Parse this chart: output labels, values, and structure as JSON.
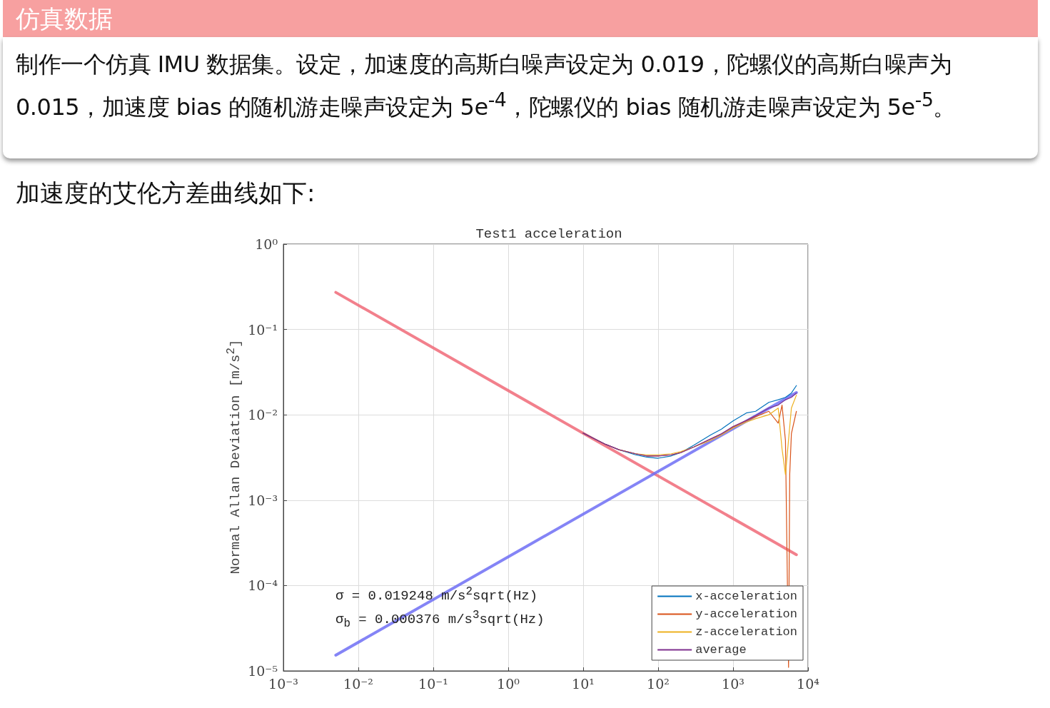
{
  "chart_data": {
    "type": "line",
    "title": "Test1 acceleration",
    "ylabel": "Normal Allan Deviation [m/s$^{2}$]",
    "annotations": [
      "仿真数据",
      "制作一个仿真 IMU 数据集。设定，加速度的高斯白噪声设定为 0.019，陀螺仪的高斯白噪声为 0.015，加速度 bias 的随机游走噪声设定为 5e$^{-4}$，陀螺仪的 bias 随机游走噪声设定为 5e$^{-5}$。",
      "加速度的艾伦方差曲线如下:",
      "σ = 0.019248 m/s$^{2}$sqrt(Hz)",
      "σ$_{b}$ = 0.000376 m/s$^{3}$sqrt(Hz)"
    ],
    "log": "xy",
    "grid": true,
    "legend": "bottom right",
    "marker": "none",
    "line_style": "solid",
    "xlim": [
      0.001,
      10000
    ],
    "ylim": [
      1e-05,
      1
    ],
    "xticks": [
      {
        "value": 0.001,
        "label": "10⁻³"
      },
      {
        "value": 0.01,
        "label": "10⁻²"
      },
      {
        "value": 0.1,
        "label": "10⁻¹"
      },
      {
        "value": 1,
        "label": "10⁰"
      },
      {
        "value": 10,
        "label": "10¹"
      },
      {
        "value": 100,
        "label": "10²"
      },
      {
        "value": 1000,
        "label": "10³"
      },
      {
        "value": 10000,
        "label": "10⁴"
      }
    ],
    "yticks": [
      {
        "value": 1e-05,
        "label": "10⁻⁵"
      },
      {
        "value": 0.0001,
        "label": "10⁻⁴"
      },
      {
        "value": 0.001,
        "label": "10⁻³"
      },
      {
        "value": 0.01,
        "label": "10⁻²"
      },
      {
        "value": 0.1,
        "label": "10⁻¹"
      },
      {
        "value": 1,
        "label": "10⁰"
      }
    ],
    "series": [
      {
        "name": "x-acceleration",
        "color": "#0072bd",
        "x": [
          10,
          20,
          30,
          50,
          70,
          100,
          150,
          200,
          300,
          500,
          700,
          1000,
          1500,
          2000,
          3000,
          4000,
          5000,
          6000,
          7000
        ],
        "values": [
          0.0061,
          0.0045,
          0.0039,
          0.0034,
          0.0032,
          0.0031,
          0.0033,
          0.0036,
          0.0044,
          0.0058,
          0.0068,
          0.0085,
          0.0105,
          0.011,
          0.014,
          0.015,
          0.016,
          0.018,
          0.022
        ]
      },
      {
        "name": "y-acceleration",
        "color": "#d95319",
        "x": [
          10,
          20,
          30,
          50,
          70,
          100,
          150,
          200,
          300,
          500,
          700,
          1000,
          1500,
          2000,
          3000,
          4000,
          4500,
          5000,
          5500,
          5700,
          6000,
          7000
        ],
        "values": [
          0.0061,
          0.0045,
          0.0039,
          0.0035,
          0.0033,
          0.0033,
          0.0034,
          0.0036,
          0.0042,
          0.0052,
          0.006,
          0.0072,
          0.0085,
          0.0095,
          0.011,
          0.008,
          0.013,
          0.005,
          1.1e-05,
          0.002,
          0.006,
          0.011
        ]
      },
      {
        "name": "z-acceleration",
        "color": "#edb120",
        "x": [
          30,
          50,
          70,
          100,
          150,
          200,
          300,
          500,
          700,
          1000,
          1500,
          2000,
          3000,
          4000,
          4500,
          5000,
          6000,
          7000
        ],
        "values": [
          0.0039,
          0.0035,
          0.0034,
          0.0034,
          0.0035,
          0.0037,
          0.0042,
          0.005,
          0.0058,
          0.007,
          0.0082,
          0.009,
          0.01,
          0.012,
          0.004,
          0.002,
          0.012,
          0.017
        ]
      },
      {
        "name": "average",
        "color": "#7e2f8e",
        "x": [
          10,
          20,
          30,
          50,
          70,
          100,
          150,
          200,
          300,
          500,
          700,
          1000,
          1500,
          2000,
          3000,
          4000,
          5000,
          6000,
          7000
        ],
        "values": [
          0.0061,
          0.0045,
          0.0039,
          0.0035,
          0.0033,
          0.0033,
          0.0034,
          0.0036,
          0.0042,
          0.0052,
          0.006,
          0.0073,
          0.0086,
          0.0098,
          0.012,
          0.013,
          0.015,
          0.016,
          0.018
        ]
      },
      {
        "color": "#f06a78",
        "x": [
          0.005,
          7000
        ],
        "values": [
          0.272,
          0.00023
        ]
      },
      {
        "color": "#6e6ef5",
        "x": [
          0.005,
          7000
        ],
        "values": [
          1.53e-05,
          0.0182
        ]
      }
    ]
  }
}
